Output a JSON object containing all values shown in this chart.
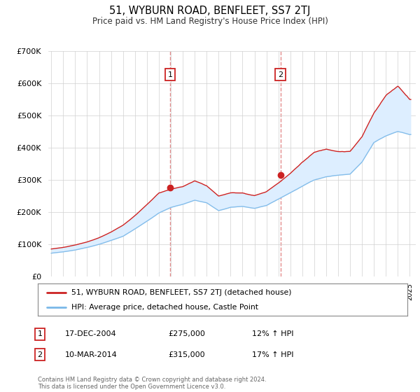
{
  "title": "51, WYBURN ROAD, BENFLEET, SS7 2TJ",
  "subtitle": "Price paid vs. HM Land Registry's House Price Index (HPI)",
  "legend_label_property": "51, WYBURN ROAD, BENFLEET, SS7 2TJ (detached house)",
  "legend_label_hpi": "HPI: Average price, detached house, Castle Point",
  "table_rows": [
    {
      "num": "1",
      "date": "17-DEC-2004",
      "price": "£275,000",
      "hpi": "12% ↑ HPI"
    },
    {
      "num": "2",
      "date": "10-MAR-2014",
      "price": "£315,000",
      "hpi": "17% ↑ HPI"
    }
  ],
  "footer": "Contains HM Land Registry data © Crown copyright and database right 2024.\nThis data is licensed under the Open Government Licence v3.0.",
  "sale1_x": 2004.958,
  "sale1_y": 275000,
  "sale2_x": 2014.167,
  "sale2_y": 315000,
  "vline1_x": 2004.958,
  "vline2_x": 2014.167,
  "ylim": [
    0,
    700000
  ],
  "xlim_left": 1994.75,
  "xlim_right": 2025.5,
  "bg_color": "#ffffff",
  "grid_color": "#d0d0d0",
  "vline_color": "#e08080",
  "prop_color": "#cc2222",
  "hpi_color": "#7ab8e8",
  "fill_between_color": "#ddeeff",
  "fill_above_color": "#fde0e0",
  "marker_color": "#cc2222",
  "label_box_edge": "#cc2222"
}
